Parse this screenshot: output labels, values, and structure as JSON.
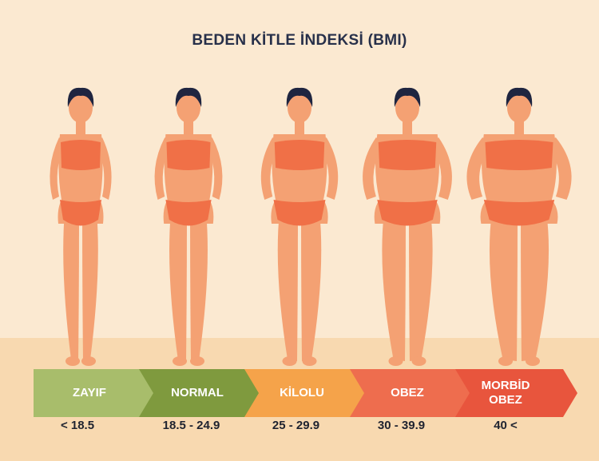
{
  "title": "BEDEN KİTLE İNDEKSİ (BMI)",
  "categories": [
    {
      "label": "ZAYIF",
      "range": "< 18.5",
      "color": "#a8bd6b",
      "figure": "thin-woman-figure"
    },
    {
      "label": "NORMAL",
      "range": "18.5 - 24.9",
      "color": "#7f9a3e",
      "figure": "normal-woman-figure"
    },
    {
      "label": "KİLOLU",
      "range": "25 - 29.9",
      "color": "#f5a34a",
      "figure": "overweight-woman-figure"
    },
    {
      "label": "OBEZ",
      "range": "30 - 39.9",
      "color": "#ee6d4e",
      "figure": "obese-woman-figure"
    },
    {
      "label": "MORBİD OBEZ",
      "range": "40 <",
      "color": "#e8553d",
      "figure": "morbid-obese-woman-figure"
    }
  ],
  "colors": {
    "background": "#fbe9d1",
    "floor": "#f8d9b0",
    "skin": "#f4a173",
    "swimwear": "#f07047",
    "hair": "#1f2540"
  }
}
